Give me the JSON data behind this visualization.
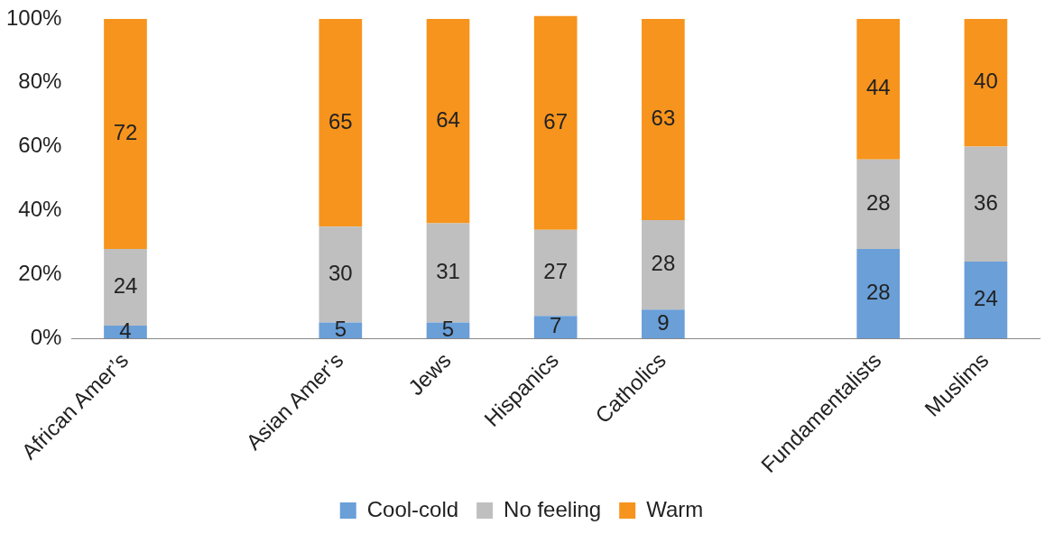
{
  "chart_data": {
    "type": "bar",
    "stacked": true,
    "categories": [
      "African Amer’s",
      null,
      "Asian Amer’s",
      "Jews",
      "Hispanics",
      "Catholics",
      null,
      "Fundamentalists",
      "Muslims"
    ],
    "series": [
      {
        "name": "Cool-cold",
        "color": "#6a9fd8",
        "values": [
          4,
          null,
          5,
          5,
          7,
          9,
          null,
          28,
          24
        ]
      },
      {
        "name": "No feeling",
        "color": "#bfbfbf",
        "values": [
          24,
          null,
          30,
          31,
          27,
          28,
          null,
          28,
          36
        ]
      },
      {
        "name": "Warm",
        "color": "#f7941d",
        "values": [
          72,
          null,
          65,
          64,
          67,
          63,
          null,
          44,
          40
        ]
      }
    ],
    "ylim": [
      0,
      101
    ],
    "yticks": [
      {
        "value": 0,
        "label": "0%"
      },
      {
        "value": 20,
        "label": "20%"
      },
      {
        "value": 40,
        "label": "40%"
      },
      {
        "value": 60,
        "label": "60%"
      },
      {
        "value": 80,
        "label": "80%"
      },
      {
        "value": 100,
        "label": "100%"
      }
    ],
    "data_labels": true,
    "legend": "bottom",
    "grid": false
  }
}
